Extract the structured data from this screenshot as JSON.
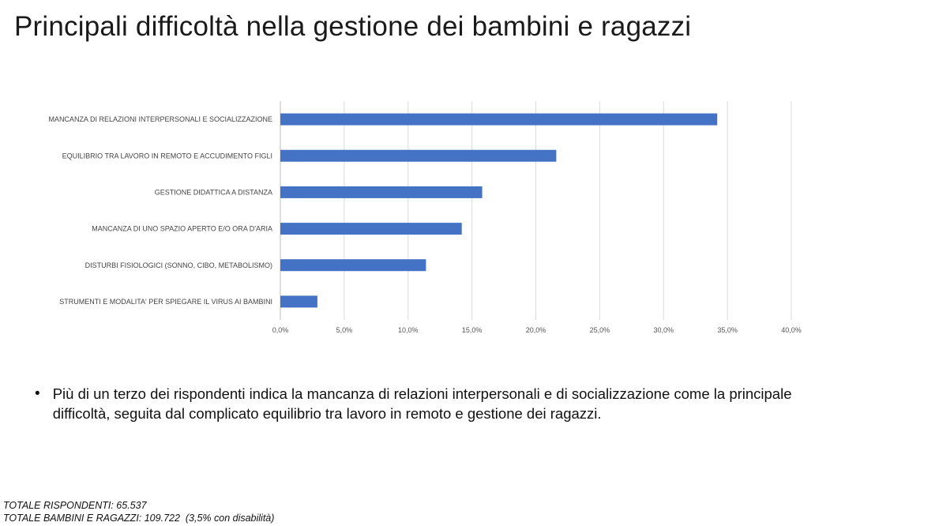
{
  "slide": {
    "title": "Principali difficoltà nella gestione dei bambini e ragazzi",
    "bullet_symbol": "•",
    "bullet_text": "Più di un terzo dei rispondenti indica la mancanza di relazioni interpersonali e di socializzazione come la principale difficoltà, seguita dal complicato equilibrio tra lavoro in remoto e gestione dei ragazzi.",
    "footer": {
      "line1": "TOTALE RISPONDENTI: 65.537",
      "line2": "TOTALE BAMBINI E RAGAZZI: 109.722  (3,5% con disabilità)"
    }
  },
  "chart_data": {
    "type": "bar",
    "orientation": "horizontal",
    "categories": [
      "MANCANZA DI RELAZIONI INTERPERSONALI E SOCIALIZZAZIONE",
      "EQUILIBRIO TRA LAVORO IN REMOTO E ACCUDIMENTO FIGLI",
      "GESTIONE DIDATTICA A DISTANZA",
      "MANCANZA DI UNO SPAZIO APERTO E/O ORA D'ARIA",
      "DISTURBI FISIOLOGICI (SONNO, CIBO, METABOLISMO)",
      "STRUMENTI E MODALITA' PER SPIEGARE IL VIRUS AI BAMBINI"
    ],
    "values": [
      34.2,
      21.6,
      15.8,
      14.2,
      11.4,
      2.9
    ],
    "xlim": [
      0,
      40
    ],
    "xticks": [
      0,
      5,
      10,
      15,
      20,
      25,
      30,
      35,
      40
    ],
    "xtick_labels": [
      "0,0%",
      "5,0%",
      "10,0%",
      "15,0%",
      "20,0%",
      "25,0%",
      "30,0%",
      "35,0%",
      "40,0%"
    ],
    "bar_color": "#4472C4",
    "grid": true,
    "title": "",
    "xlabel": "",
    "ylabel": ""
  }
}
